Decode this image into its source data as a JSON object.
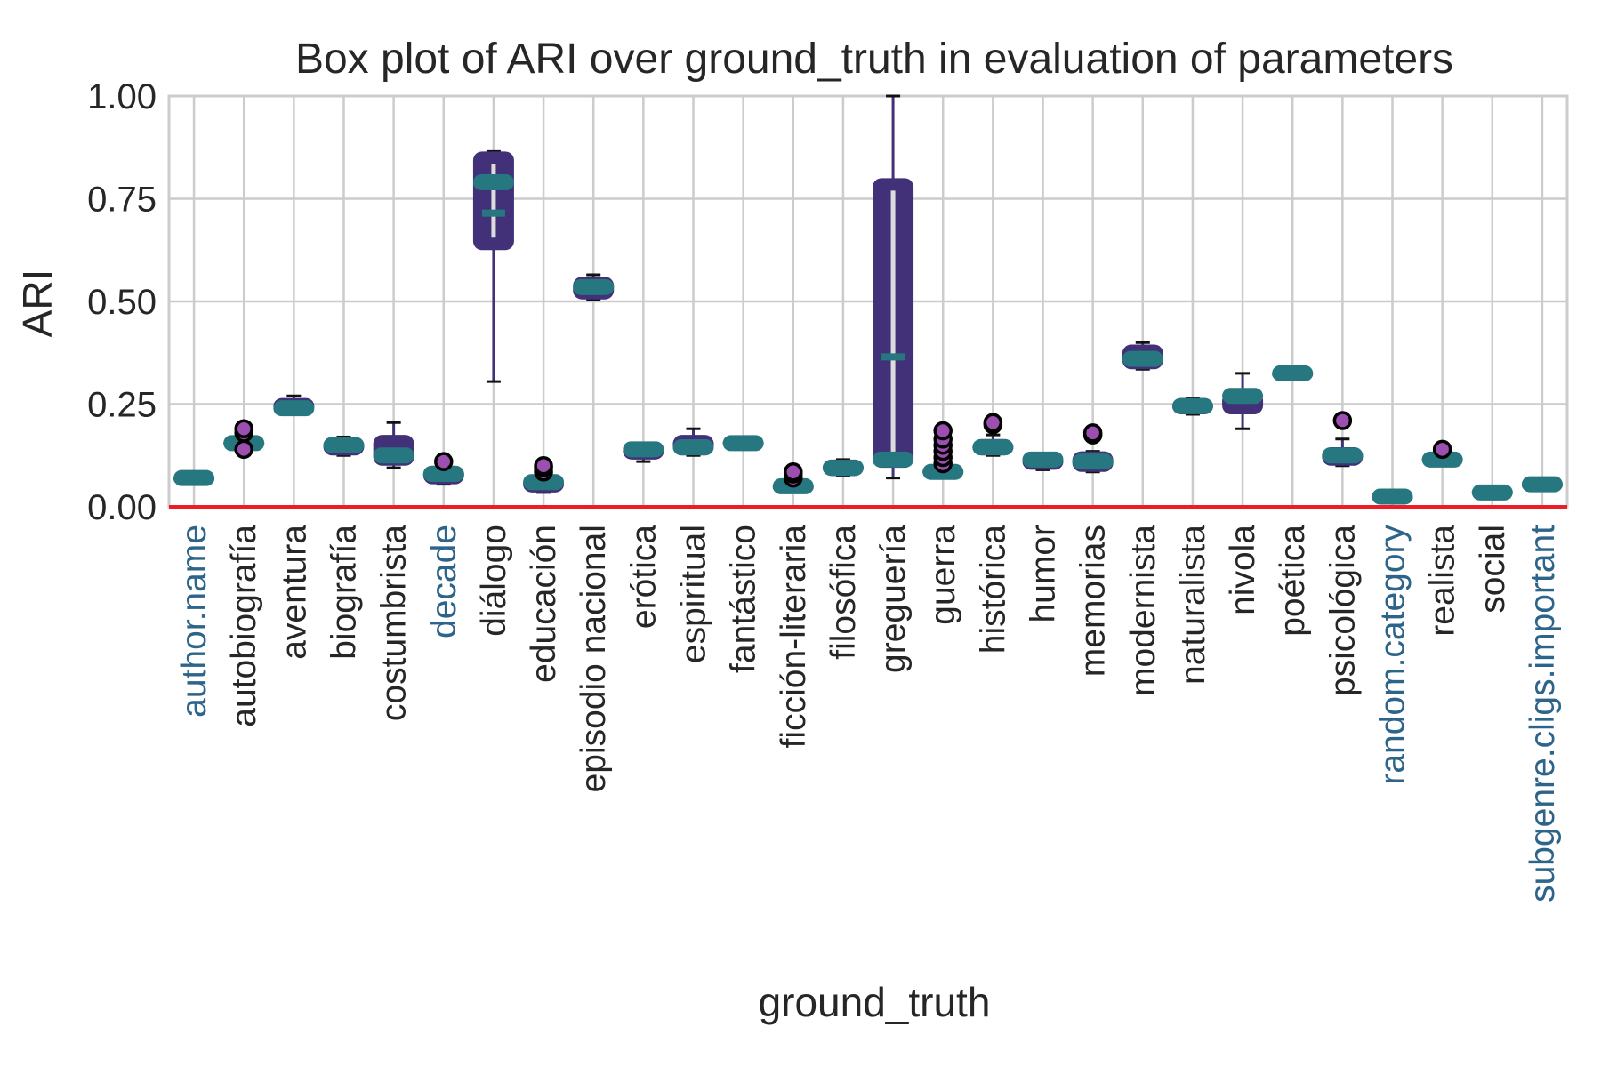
{
  "chart_data": {
    "type": "box",
    "title": "Box plot of ARI over ground_truth in evaluation of parameters",
    "xlabel": "ground_truth",
    "ylabel": "ARI",
    "ylim": [
      0,
      1
    ],
    "yticks": [
      0,
      0.25,
      0.5,
      0.75,
      1
    ],
    "ytick_labels": [
      "0.00",
      "0.25",
      "0.50",
      "0.75",
      "1.00"
    ],
    "grid": true,
    "reference_line": {
      "y": 0,
      "color": "#ee1c24"
    },
    "colors": {
      "box_fill": "#423178",
      "median": "#26777f",
      "whisker": "#423178",
      "cap": "#111111",
      "flier_fill": "#9c4fb0",
      "flier_edge": "#000000",
      "grid": "#cccccc",
      "label_default": "#262626",
      "label_highlight": "#2d6489"
    },
    "categories": [
      {
        "name": "author.name",
        "highlight": true,
        "q1": 0.06,
        "median": 0.07,
        "q3": 0.075,
        "whislo": 0.06,
        "whishi": 0.075,
        "fliers": []
      },
      {
        "name": "autobiografía",
        "highlight": false,
        "q1": 0.145,
        "median": 0.155,
        "q3": 0.165,
        "whislo": 0.145,
        "whishi": 0.165,
        "fliers": [
          0.14,
          0.18,
          0.19
        ]
      },
      {
        "name": "aventura",
        "highlight": false,
        "q1": 0.225,
        "median": 0.24,
        "q3": 0.265,
        "whislo": 0.225,
        "whishi": 0.27,
        "fliers": []
      },
      {
        "name": "biografía",
        "highlight": false,
        "q1": 0.125,
        "median": 0.15,
        "q3": 0.17,
        "whislo": 0.125,
        "whishi": 0.17,
        "fliers": []
      },
      {
        "name": "costumbrista",
        "highlight": false,
        "q1": 0.1,
        "median": 0.125,
        "q3": 0.175,
        "whislo": 0.095,
        "whishi": 0.205,
        "fliers": []
      },
      {
        "name": "decade",
        "highlight": true,
        "q1": 0.055,
        "median": 0.08,
        "q3": 0.1,
        "whislo": 0.055,
        "whishi": 0.1,
        "fliers": [
          0.11
        ]
      },
      {
        "name": "diálogo",
        "highlight": false,
        "q1": 0.625,
        "median": 0.79,
        "q3": 0.865,
        "whislo": 0.305,
        "whishi": 0.865,
        "mean": 0.715,
        "fliers": []
      },
      {
        "name": "educación",
        "highlight": false,
        "q1": 0.035,
        "median": 0.06,
        "q3": 0.075,
        "whislo": 0.035,
        "whishi": 0.075,
        "fliers": [
          0.085,
          0.095,
          0.1
        ]
      },
      {
        "name": "episodio nacional",
        "highlight": false,
        "q1": 0.505,
        "median": 0.535,
        "q3": 0.56,
        "whislo": 0.505,
        "whishi": 0.565,
        "fliers": []
      },
      {
        "name": "erótica",
        "highlight": false,
        "q1": 0.115,
        "median": 0.14,
        "q3": 0.155,
        "whislo": 0.11,
        "whishi": 0.155,
        "fliers": []
      },
      {
        "name": "espiritual",
        "highlight": false,
        "q1": 0.125,
        "median": 0.145,
        "q3": 0.175,
        "whislo": 0.125,
        "whishi": 0.19,
        "fliers": []
      },
      {
        "name": "fantástico",
        "highlight": false,
        "q1": 0.145,
        "median": 0.155,
        "q3": 0.165,
        "whislo": 0.145,
        "whishi": 0.17,
        "fliers": []
      },
      {
        "name": "ficción-literaria",
        "highlight": false,
        "q1": 0.035,
        "median": 0.05,
        "q3": 0.06,
        "whislo": 0.035,
        "whishi": 0.06,
        "fliers": [
          0.07,
          0.08,
          0.085
        ]
      },
      {
        "name": "filosófica",
        "highlight": false,
        "q1": 0.075,
        "median": 0.095,
        "q3": 0.115,
        "whislo": 0.075,
        "whishi": 0.115,
        "fliers": []
      },
      {
        "name": "greguería",
        "highlight": false,
        "q1": 0.095,
        "median": 0.115,
        "q3": 0.8,
        "whislo": 0.07,
        "whishi": 1.0,
        "mean": 0.365,
        "fliers": []
      },
      {
        "name": "guerra",
        "highlight": false,
        "q1": 0.07,
        "median": 0.085,
        "q3": 0.1,
        "whislo": 0.07,
        "whishi": 0.1,
        "fliers": [
          0.105,
          0.12,
          0.135,
          0.15,
          0.165,
          0.185
        ]
      },
      {
        "name": "histórica",
        "highlight": false,
        "q1": 0.125,
        "median": 0.145,
        "q3": 0.165,
        "whislo": 0.125,
        "whishi": 0.175,
        "fliers": [
          0.2,
          0.205
        ]
      },
      {
        "name": "humor",
        "highlight": false,
        "q1": 0.09,
        "median": 0.115,
        "q3": 0.13,
        "whislo": 0.09,
        "whishi": 0.13,
        "fliers": []
      },
      {
        "name": "memorias",
        "highlight": false,
        "q1": 0.085,
        "median": 0.11,
        "q3": 0.135,
        "whislo": 0.085,
        "whishi": 0.135,
        "fliers": [
          0.175,
          0.18
        ]
      },
      {
        "name": "modernista",
        "highlight": false,
        "q1": 0.335,
        "median": 0.36,
        "q3": 0.395,
        "whislo": 0.335,
        "whishi": 0.4,
        "fliers": []
      },
      {
        "name": "naturalista",
        "highlight": false,
        "q1": 0.225,
        "median": 0.245,
        "q3": 0.265,
        "whislo": 0.225,
        "whishi": 0.265,
        "fliers": []
      },
      {
        "name": "nivola",
        "highlight": false,
        "q1": 0.225,
        "median": 0.27,
        "q3": 0.28,
        "whislo": 0.19,
        "whishi": 0.325,
        "fliers": []
      },
      {
        "name": "poética",
        "highlight": false,
        "q1": 0.31,
        "median": 0.325,
        "q3": 0.335,
        "whislo": 0.31,
        "whishi": 0.34,
        "fliers": []
      },
      {
        "name": "psicológica",
        "highlight": false,
        "q1": 0.1,
        "median": 0.125,
        "q3": 0.145,
        "whislo": 0.1,
        "whishi": 0.165,
        "fliers": [
          0.21
        ]
      },
      {
        "name": "random.category",
        "highlight": true,
        "q1": 0.015,
        "median": 0.025,
        "q3": 0.03,
        "whislo": 0.015,
        "whishi": 0.03,
        "fliers": []
      },
      {
        "name": "realista",
        "highlight": false,
        "q1": 0.1,
        "median": 0.115,
        "q3": 0.13,
        "whislo": 0.1,
        "whishi": 0.13,
        "fliers": [
          0.14
        ]
      },
      {
        "name": "social",
        "highlight": false,
        "q1": 0.025,
        "median": 0.035,
        "q3": 0.045,
        "whislo": 0.025,
        "whishi": 0.045,
        "fliers": []
      },
      {
        "name": "subgenre.cligs.important",
        "highlight": true,
        "q1": 0.045,
        "median": 0.055,
        "q3": 0.06,
        "whislo": 0.045,
        "whishi": 0.06,
        "fliers": []
      }
    ]
  }
}
